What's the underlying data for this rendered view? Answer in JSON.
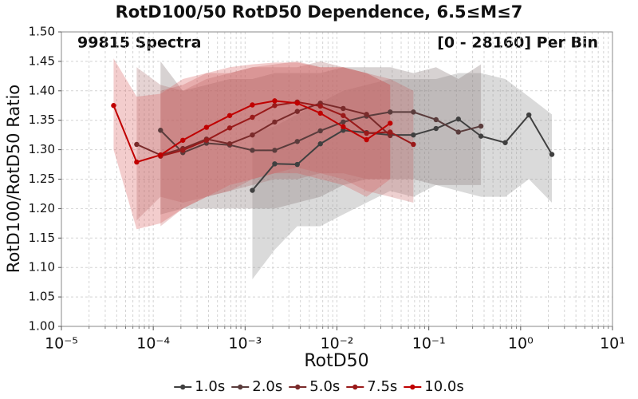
{
  "chart_data": {
    "type": "line",
    "title": "RotD100/50 RotD50 Dependence, 6.5≤M≤7",
    "annotations": [
      "99815 Spectra",
      "[0 - 28160] Per Bin"
    ],
    "x_label": "RotD50",
    "y_label": "RotD100/RotD50 Ratio",
    "xscale": "log",
    "grid": true,
    "legend": "bottom",
    "xlim": [
      1e-05,
      10
    ],
    "ylim": [
      1.0,
      1.5
    ],
    "xticks": [
      {
        "value": 1e-05,
        "label": "10⁻⁵"
      },
      {
        "value": 0.0001,
        "label": "10⁻⁴"
      },
      {
        "value": 0.001,
        "label": "10⁻³"
      },
      {
        "value": 0.01,
        "label": "10⁻²"
      },
      {
        "value": 0.1,
        "label": "10⁻¹"
      },
      {
        "value": 1,
        "label": "10⁰"
      },
      {
        "value": 10,
        "label": "10¹"
      }
    ],
    "yticks": [
      {
        "value": 1.0,
        "label": "1.00"
      },
      {
        "value": 1.05,
        "label": "1.05"
      },
      {
        "value": 1.1,
        "label": "1.10"
      },
      {
        "value": 1.15,
        "label": "1.15"
      },
      {
        "value": 1.2,
        "label": "1.20"
      },
      {
        "value": 1.25,
        "label": "1.25"
      },
      {
        "value": 1.3,
        "label": "1.30"
      },
      {
        "value": 1.35,
        "label": "1.35"
      },
      {
        "value": 1.4,
        "label": "1.40"
      },
      {
        "value": 1.45,
        "label": "1.45"
      },
      {
        "value": 1.5,
        "label": "1.50"
      }
    ],
    "series": [
      {
        "name": "1.0s",
        "color": "#404040",
        "band_color": "rgba(150,150,150,0.35)",
        "x": [
          0.0012,
          0.0021,
          0.0037,
          0.0066,
          0.0117,
          0.021,
          0.038,
          0.068,
          0.12,
          0.21,
          0.37,
          0.68,
          1.23,
          2.19
        ],
        "values": [
          1.231,
          1.276,
          1.275,
          1.31,
          1.333,
          1.329,
          1.325,
          1.325,
          1.336,
          1.352,
          1.323,
          1.312,
          1.359,
          1.292
        ],
        "upper": [
          1.33,
          1.34,
          1.36,
          1.38,
          1.4,
          1.41,
          1.42,
          1.42,
          1.42,
          1.43,
          1.43,
          1.42,
          1.39,
          1.36
        ],
        "lower": [
          1.08,
          1.13,
          1.17,
          1.17,
          1.19,
          1.21,
          1.23,
          1.22,
          1.24,
          1.23,
          1.22,
          1.22,
          1.25,
          1.21
        ]
      },
      {
        "name": "2.0s",
        "color": "#5a3c3c",
        "band_color": "rgba(140,125,125,0.35)",
        "x": [
          0.00012,
          0.00021,
          0.00038,
          0.00068,
          0.0012,
          0.0021,
          0.0037,
          0.0066,
          0.0117,
          0.021,
          0.038,
          0.068,
          0.12,
          0.21,
          0.37
        ],
        "values": [
          1.333,
          1.295,
          1.311,
          1.308,
          1.299,
          1.299,
          1.314,
          1.332,
          1.347,
          1.357,
          1.364,
          1.364,
          1.351,
          1.33,
          1.34
        ],
        "upper": [
          1.45,
          1.4,
          1.41,
          1.42,
          1.42,
          1.43,
          1.43,
          1.43,
          1.44,
          1.44,
          1.44,
          1.43,
          1.44,
          1.42,
          1.445
        ],
        "lower": [
          1.19,
          1.2,
          1.2,
          1.2,
          1.2,
          1.2,
          1.21,
          1.22,
          1.24,
          1.25,
          1.25,
          1.25,
          1.24,
          1.24,
          1.24
        ]
      },
      {
        "name": "5.0s",
        "color": "#7a2a2a",
        "band_color": "rgba(170,110,110,0.3)",
        "x": [
          6.6e-05,
          0.00012,
          0.00021,
          0.00038,
          0.00068,
          0.0012,
          0.0021,
          0.0037,
          0.0066,
          0.0117,
          0.021,
          0.038
        ],
        "values": [
          1.309,
          1.291,
          1.302,
          1.318,
          1.31,
          1.325,
          1.347,
          1.365,
          1.379,
          1.37,
          1.36,
          1.324
        ],
        "upper": [
          1.44,
          1.41,
          1.4,
          1.42,
          1.43,
          1.44,
          1.44,
          1.44,
          1.45,
          1.44,
          1.43,
          1.41
        ],
        "lower": [
          1.18,
          1.22,
          1.21,
          1.22,
          1.23,
          1.24,
          1.25,
          1.25,
          1.26,
          1.26,
          1.25,
          1.25
        ]
      },
      {
        "name": "7.5s",
        "color": "#9a1a1a",
        "band_color": "rgba(200,100,100,0.3)",
        "x": [
          0.00012,
          0.00021,
          0.00038,
          0.00068,
          0.0012,
          0.0021,
          0.0037,
          0.0066,
          0.0117,
          0.021,
          0.038,
          0.068
        ],
        "values": [
          1.289,
          1.299,
          1.316,
          1.337,
          1.355,
          1.375,
          1.381,
          1.374,
          1.358,
          1.328,
          1.33,
          1.309
        ],
        "upper": [
          1.4,
          1.41,
          1.43,
          1.43,
          1.44,
          1.445,
          1.45,
          1.44,
          1.44,
          1.43,
          1.42,
          1.4
        ],
        "lower": [
          1.17,
          1.2,
          1.22,
          1.23,
          1.25,
          1.26,
          1.27,
          1.26,
          1.25,
          1.23,
          1.22,
          1.21
        ]
      },
      {
        "name": "10.0s",
        "color": "#c00000",
        "band_color": "rgba(215,90,90,0.3)",
        "x": [
          3.7e-05,
          6.6e-05,
          0.00012,
          0.00021,
          0.00038,
          0.00068,
          0.0012,
          0.0021,
          0.0037,
          0.0066,
          0.0117,
          0.021,
          0.038
        ],
        "values": [
          1.375,
          1.279,
          1.291,
          1.316,
          1.338,
          1.358,
          1.376,
          1.383,
          1.379,
          1.362,
          1.339,
          1.317,
          1.345
        ],
        "upper": [
          1.455,
          1.39,
          1.395,
          1.42,
          1.43,
          1.44,
          1.445,
          1.448,
          1.448,
          1.44,
          1.44,
          1.43,
          1.41
        ],
        "lower": [
          1.3,
          1.165,
          1.175,
          1.2,
          1.22,
          1.24,
          1.25,
          1.26,
          1.26,
          1.25,
          1.24,
          1.22,
          1.25
        ]
      }
    ]
  }
}
